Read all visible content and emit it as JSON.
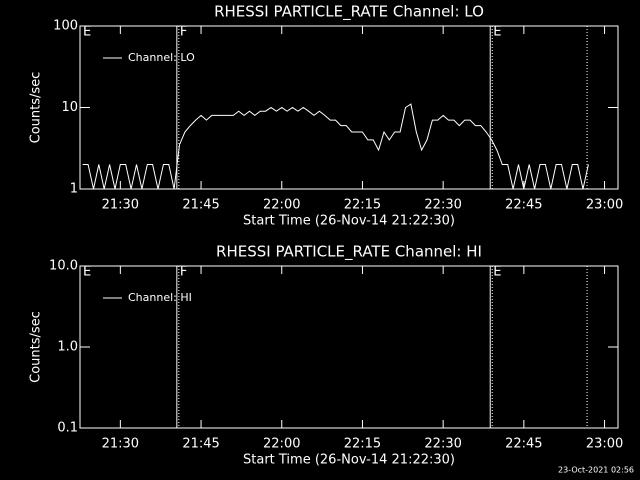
{
  "chart_data": [
    {
      "type": "line",
      "title": "RHESSI PARTICLE_RATE Channel: LO",
      "xlabel": "Start Time (26-Nov-14 21:22:30)",
      "ylabel": "Counts/sec",
      "log_y": true,
      "ylim": [
        1,
        100
      ],
      "yticks": [
        1,
        10,
        100
      ],
      "xlim": [
        "21:22:30",
        "23:02:30"
      ],
      "xticks": [
        "21:30",
        "21:45",
        "22:00",
        "22:15",
        "22:30",
        "22:45",
        "23:00"
      ],
      "markers": [
        {
          "x": "21:22:30",
          "label": "E",
          "styles": []
        },
        {
          "x": "21:40:30",
          "label": "F",
          "styles": [
            "solid",
            "dotted"
          ]
        },
        {
          "x": "22:38:45",
          "label": "E",
          "styles": [
            "solid",
            "dotted"
          ]
        },
        {
          "x": "22:56:45",
          "styles": [
            "dotted"
          ]
        }
      ],
      "x": [
        "21:23",
        "21:24",
        "21:25",
        "21:26",
        "21:27",
        "21:28",
        "21:29",
        "21:30",
        "21:31",
        "21:32",
        "21:33",
        "21:34",
        "21:35",
        "21:36",
        "21:37",
        "21:38",
        "21:39",
        "21:40",
        "21:41",
        "21:42",
        "21:43",
        "21:44",
        "21:45",
        "21:46",
        "21:47",
        "21:48",
        "21:49",
        "21:50",
        "21:51",
        "21:52",
        "21:53",
        "21:54",
        "21:55",
        "21:56",
        "21:57",
        "21:58",
        "21:59",
        "22:00",
        "22:01",
        "22:02",
        "22:03",
        "22:04",
        "22:05",
        "22:06",
        "22:07",
        "22:08",
        "22:09",
        "22:10",
        "22:11",
        "22:12",
        "22:13",
        "22:14",
        "22:15",
        "22:16",
        "22:17",
        "22:18",
        "22:19",
        "22:20",
        "22:21",
        "22:22",
        "22:23",
        "22:24",
        "22:25",
        "22:26",
        "22:27",
        "22:28",
        "22:29",
        "22:30",
        "22:31",
        "22:32",
        "22:33",
        "22:34",
        "22:35",
        "22:36",
        "22:37",
        "22:38",
        "22:39",
        "22:40",
        "22:41",
        "22:42",
        "22:43",
        "22:44",
        "22:45",
        "22:46",
        "22:47",
        "22:48",
        "22:49",
        "22:50",
        "22:51",
        "22:52",
        "22:53",
        "22:54",
        "22:55",
        "22:56",
        "22:57"
      ],
      "series": [
        {
          "name": "Channel: LO",
          "color": "#ffffff",
          "values": [
            2,
            2,
            1,
            2,
            1,
            2,
            1,
            2,
            2,
            1,
            2,
            1,
            2,
            2,
            1,
            2,
            2,
            1,
            3.5,
            5,
            6,
            7,
            8,
            7,
            8,
            8,
            8,
            8,
            8,
            9,
            8,
            9,
            8,
            9,
            9,
            10,
            9,
            10,
            9,
            10,
            9,
            10,
            9,
            8,
            9,
            8,
            7,
            7,
            6,
            6,
            5,
            5,
            5,
            4,
            4,
            3,
            5,
            4,
            5,
            5,
            10,
            11,
            5,
            3,
            4,
            7,
            7,
            8,
            7,
            7,
            6,
            7,
            7,
            6,
            6,
            5,
            4,
            3,
            2,
            2,
            1,
            2,
            1,
            2,
            1,
            2,
            2,
            1,
            2,
            2,
            1,
            2,
            2,
            1,
            2
          ]
        }
      ]
    },
    {
      "type": "line",
      "title": "RHESSI PARTICLE_RATE Channel: HI",
      "xlabel": "Start Time (26-Nov-14 21:22:30)",
      "ylabel": "Counts/sec",
      "log_y": true,
      "ylim": [
        0.1,
        10
      ],
      "yticks": [
        0.1,
        {
          "value": 1,
          "label": "1.0"
        },
        {
          "value": 10,
          "label": "10.0"
        }
      ],
      "xlim": [
        "21:22:30",
        "23:02:30"
      ],
      "xticks": [
        "21:30",
        "21:45",
        "22:00",
        "22:15",
        "22:30",
        "22:45",
        "23:00"
      ],
      "markers": [
        {
          "x": "21:22:30",
          "label": "E",
          "styles": []
        },
        {
          "x": "21:40:30",
          "label": "F",
          "styles": [
            "solid",
            "dotted"
          ]
        },
        {
          "x": "22:38:45",
          "label": "E",
          "styles": [
            "solid",
            "dotted"
          ]
        },
        {
          "x": "22:56:45",
          "styles": [
            "dotted"
          ]
        }
      ],
      "x": [],
      "series": [
        {
          "name": "Channel: HI",
          "color": "#ffffff",
          "values": []
        }
      ]
    }
  ],
  "footer": "23-Oct-2021 02:56"
}
